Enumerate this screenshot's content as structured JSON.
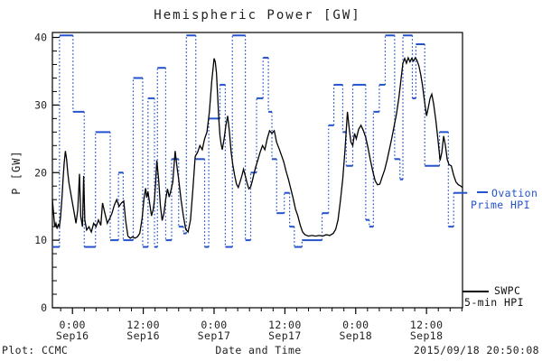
{
  "title": "Hemispheric Power [GW]",
  "y_axis": {
    "label": "P [GW]"
  },
  "x_axis": {
    "label": "Date and Time"
  },
  "footer": {
    "left": "Plot: CCMC",
    "right": "2015/09/18 20:50:08"
  },
  "legend": {
    "ovation": {
      "line1": "Ovation",
      "line2": "Prime HPI"
    },
    "swpc": {
      "line1": "SWPC",
      "line2": "5-min HPI"
    }
  },
  "colors": {
    "ovation": "#2453cc",
    "swpc": "#000000",
    "frame": "#000000",
    "background": "#ffffff"
  },
  "chart_data": {
    "type": "line",
    "title": "Hemispheric Power [GW]",
    "xlabel": "Date and Time",
    "ylabel": "P [GW]",
    "x_unit": "hours since 2015-09-16 00:00",
    "xlim": [
      -3.4,
      66.1
    ],
    "ylim": [
      0,
      40
    ],
    "grid": false,
    "x_major_ticks": [
      {
        "t": 0,
        "time": "0:00",
        "date": "Sep16"
      },
      {
        "t": 12,
        "time": "12:00",
        "date": "Sep16"
      },
      {
        "t": 24,
        "time": "0:00",
        "date": "Sep17"
      },
      {
        "t": 36,
        "time": "12:00",
        "date": "Sep17"
      },
      {
        "t": 48,
        "time": "0:00",
        "date": "Sep18"
      },
      {
        "t": 60,
        "time": "12:00",
        "date": "Sep18"
      }
    ],
    "x_minor_step": 2,
    "y_major_ticks": [
      0,
      10,
      20,
      30,
      40
    ],
    "y_minor_step": 2,
    "series": [
      {
        "name": "Ovation Prime HPI",
        "color": "#2453cc",
        "render": "level steps: solid horizontal segments joined by dotted vertical connectors",
        "steps": [
          [
            -3.4,
            -2.2,
            9
          ],
          [
            -2.2,
            0.1,
            40.3
          ],
          [
            0.1,
            2.0,
            29
          ],
          [
            2.0,
            3.9,
            9
          ],
          [
            3.9,
            6.4,
            26
          ],
          [
            6.4,
            7.8,
            10
          ],
          [
            7.8,
            8.6,
            20
          ],
          [
            8.6,
            10.3,
            10
          ],
          [
            10.3,
            11.9,
            34
          ],
          [
            11.9,
            12.8,
            9
          ],
          [
            12.8,
            13.9,
            31
          ],
          [
            13.9,
            14.4,
            9
          ],
          [
            14.4,
            15.8,
            35.5
          ],
          [
            15.8,
            16.8,
            10
          ],
          [
            16.8,
            18.0,
            22
          ],
          [
            18.0,
            18.8,
            12
          ],
          [
            18.8,
            19.3,
            11
          ],
          [
            19.3,
            20.9,
            40.3
          ],
          [
            20.9,
            22.4,
            22
          ],
          [
            22.4,
            23.1,
            9
          ],
          [
            23.1,
            25.0,
            28
          ],
          [
            25.0,
            25.9,
            33
          ],
          [
            25.9,
            27.1,
            9
          ],
          [
            27.1,
            29.3,
            40.3
          ],
          [
            29.3,
            30.2,
            10
          ],
          [
            30.2,
            31.2,
            20
          ],
          [
            31.2,
            32.3,
            31
          ],
          [
            32.3,
            33.2,
            37
          ],
          [
            33.2,
            33.8,
            29
          ],
          [
            33.8,
            34.6,
            22
          ],
          [
            34.6,
            35.9,
            14
          ],
          [
            35.9,
            36.8,
            17
          ],
          [
            36.8,
            37.6,
            12
          ],
          [
            37.6,
            38.9,
            9
          ],
          [
            38.9,
            42.3,
            10
          ],
          [
            42.3,
            43.4,
            14
          ],
          [
            43.4,
            44.3,
            27
          ],
          [
            44.3,
            45.8,
            33
          ],
          [
            45.8,
            46.4,
            26
          ],
          [
            46.4,
            47.5,
            21
          ],
          [
            47.5,
            49.7,
            33
          ],
          [
            49.7,
            50.3,
            13
          ],
          [
            50.3,
            51.0,
            12
          ],
          [
            51.0,
            52.0,
            29
          ],
          [
            52.0,
            53.0,
            33
          ],
          [
            53.0,
            54.6,
            40.3
          ],
          [
            54.6,
            55.5,
            22
          ],
          [
            55.5,
            56.0,
            19
          ],
          [
            56.0,
            57.6,
            40.3
          ],
          [
            57.6,
            58.2,
            31
          ],
          [
            58.2,
            59.7,
            39
          ],
          [
            59.7,
            62.2,
            21
          ],
          [
            62.2,
            63.7,
            26
          ],
          [
            63.7,
            64.6,
            12
          ],
          [
            64.6,
            66.9,
            17
          ]
        ]
      },
      {
        "name": "SWPC 5-min HPI",
        "color": "#000000",
        "render": "solid jagged line",
        "points": [
          [
            -3.4,
            16
          ],
          [
            -3.2,
            14
          ],
          [
            -3.0,
            12
          ],
          [
            -2.8,
            12.5
          ],
          [
            -2.6,
            11.7
          ],
          [
            -2.4,
            12.3
          ],
          [
            -2.2,
            12
          ],
          [
            -2.0,
            13.5
          ],
          [
            -1.8,
            16
          ],
          [
            -1.6,
            19
          ],
          [
            -1.4,
            21.5
          ],
          [
            -1.2,
            23.2
          ],
          [
            -1.0,
            22
          ],
          [
            -0.8,
            20
          ],
          [
            -0.6,
            18.5
          ],
          [
            -0.4,
            17.5
          ],
          [
            -0.2,
            16.5
          ],
          [
            0,
            15.5
          ],
          [
            0.3,
            14
          ],
          [
            0.6,
            12.5
          ],
          [
            0.9,
            14.5
          ],
          [
            1.2,
            19.8
          ],
          [
            1.4,
            13.5
          ],
          [
            1.7,
            12
          ],
          [
            1.9,
            19.5
          ],
          [
            2.1,
            13
          ],
          [
            2.4,
            11.5
          ],
          [
            2.8,
            12
          ],
          [
            3.2,
            11.2
          ],
          [
            3.6,
            12.5
          ],
          [
            4.0,
            12
          ],
          [
            4.4,
            13
          ],
          [
            4.8,
            12.2
          ],
          [
            5.1,
            15.5
          ],
          [
            5.5,
            14
          ],
          [
            5.9,
            12.5
          ],
          [
            6.3,
            13.2
          ],
          [
            6.7,
            14
          ],
          [
            7.1,
            15.2
          ],
          [
            7.5,
            16
          ],
          [
            7.9,
            15
          ],
          [
            8.3,
            15.5
          ],
          [
            8.7,
            15.8
          ],
          [
            9.0,
            13
          ],
          [
            9.4,
            10.6
          ],
          [
            9.8,
            10.3
          ],
          [
            10.2,
            10.5
          ],
          [
            10.6,
            10.3
          ],
          [
            11.0,
            10.5
          ],
          [
            11.4,
            11
          ],
          [
            11.8,
            13.2
          ],
          [
            12.1,
            16
          ],
          [
            12.4,
            17.7
          ],
          [
            12.6,
            16.3
          ],
          [
            12.8,
            17.2
          ],
          [
            13.0,
            16
          ],
          [
            13.2,
            14.8
          ],
          [
            13.4,
            13.6
          ],
          [
            13.7,
            14.6
          ],
          [
            13.9,
            16
          ],
          [
            14.1,
            18.5
          ],
          [
            14.3,
            21.8
          ],
          [
            14.6,
            19
          ],
          [
            14.9,
            15.2
          ],
          [
            15.2,
            12.9
          ],
          [
            15.5,
            14
          ],
          [
            15.8,
            16
          ],
          [
            16.1,
            17.6
          ],
          [
            16.4,
            16.4
          ],
          [
            16.7,
            17.4
          ],
          [
            17.0,
            18.6
          ],
          [
            17.4,
            23.2
          ],
          [
            17.7,
            21
          ],
          [
            18.0,
            19
          ],
          [
            18.4,
            16
          ],
          [
            18.8,
            13.6
          ],
          [
            19.2,
            11.6
          ],
          [
            19.6,
            11.2
          ],
          [
            20.0,
            13
          ],
          [
            20.4,
            17.5
          ],
          [
            20.8,
            22.4
          ],
          [
            21.2,
            23
          ],
          [
            21.6,
            24
          ],
          [
            22.0,
            23.4
          ],
          [
            22.4,
            25
          ],
          [
            22.8,
            26
          ],
          [
            23.2,
            29
          ],
          [
            23.6,
            33.5
          ],
          [
            24.0,
            36.9
          ],
          [
            24.2,
            36.4
          ],
          [
            24.4,
            34.8
          ],
          [
            24.6,
            31.5
          ],
          [
            24.8,
            28
          ],
          [
            25.0,
            25.5
          ],
          [
            25.2,
            24.2
          ],
          [
            25.4,
            23.4
          ],
          [
            25.7,
            25
          ],
          [
            26.0,
            27
          ],
          [
            26.3,
            28.4
          ],
          [
            26.6,
            26
          ],
          [
            26.9,
            23
          ],
          [
            27.2,
            21
          ],
          [
            27.5,
            19.5
          ],
          [
            27.8,
            18.3
          ],
          [
            28.1,
            17.8
          ],
          [
            28.4,
            18.6
          ],
          [
            28.7,
            19.5
          ],
          [
            29.0,
            20.5
          ],
          [
            29.3,
            19.5
          ],
          [
            29.6,
            18.4
          ],
          [
            29.9,
            17.6
          ],
          [
            30.2,
            17.9
          ],
          [
            30.5,
            18.8
          ],
          [
            30.8,
            20
          ],
          [
            31.1,
            21
          ],
          [
            31.4,
            21.8
          ],
          [
            31.8,
            23
          ],
          [
            32.2,
            24
          ],
          [
            32.6,
            23.4
          ],
          [
            33.0,
            25
          ],
          [
            33.4,
            26.2
          ],
          [
            33.8,
            25.8
          ],
          [
            34.2,
            26.2
          ],
          [
            34.6,
            24.5
          ],
          [
            35.0,
            23.6
          ],
          [
            35.4,
            22.6
          ],
          [
            35.8,
            21.6
          ],
          [
            36.2,
            20.2
          ],
          [
            36.6,
            19
          ],
          [
            37.0,
            17.6
          ],
          [
            37.4,
            16.2
          ],
          [
            37.8,
            14.6
          ],
          [
            38.2,
            13.6
          ],
          [
            38.6,
            12.2
          ],
          [
            39.0,
            11.2
          ],
          [
            39.4,
            10.8
          ],
          [
            40.0,
            10.6
          ],
          [
            40.6,
            10.7
          ],
          [
            41.2,
            10.6
          ],
          [
            41.8,
            10.7
          ],
          [
            42.4,
            10.6
          ],
          [
            43.0,
            10.8
          ],
          [
            43.6,
            10.7
          ],
          [
            44.2,
            11
          ],
          [
            44.6,
            11.6
          ],
          [
            45.0,
            13
          ],
          [
            45.4,
            15.8
          ],
          [
            45.8,
            19
          ],
          [
            46.2,
            23.5
          ],
          [
            46.6,
            29
          ],
          [
            46.9,
            26.5
          ],
          [
            47.2,
            24.5
          ],
          [
            47.5,
            24
          ],
          [
            47.8,
            25.8
          ],
          [
            48.1,
            25
          ],
          [
            48.5,
            26.4
          ],
          [
            48.9,
            27
          ],
          [
            49.3,
            26.2
          ],
          [
            49.7,
            25.2
          ],
          [
            50.1,
            23.6
          ],
          [
            50.5,
            21.8
          ],
          [
            50.9,
            20.2
          ],
          [
            51.3,
            18.8
          ],
          [
            51.7,
            18.2
          ],
          [
            52.1,
            18.3
          ],
          [
            52.5,
            19.4
          ],
          [
            52.9,
            20.4
          ],
          [
            53.3,
            21.8
          ],
          [
            53.7,
            23.4
          ],
          [
            54.1,
            25
          ],
          [
            54.5,
            26.8
          ],
          [
            54.9,
            28.6
          ],
          [
            55.3,
            31
          ],
          [
            55.7,
            34
          ],
          [
            56.0,
            36.2
          ],
          [
            56.3,
            36.9
          ],
          [
            56.6,
            36.2
          ],
          [
            56.9,
            37
          ],
          [
            57.2,
            36.4
          ],
          [
            57.5,
            36.9
          ],
          [
            57.8,
            36.5
          ],
          [
            58.1,
            37
          ],
          [
            58.4,
            36.6
          ],
          [
            58.7,
            35.8
          ],
          [
            59.0,
            34.6
          ],
          [
            59.3,
            33
          ],
          [
            59.6,
            31
          ],
          [
            60.0,
            28.4
          ],
          [
            60.3,
            29.6
          ],
          [
            60.6,
            31
          ],
          [
            60.9,
            31.6
          ],
          [
            61.2,
            30.2
          ],
          [
            61.6,
            27.6
          ],
          [
            62.0,
            24.4
          ],
          [
            62.3,
            21.8
          ],
          [
            62.6,
            23
          ],
          [
            62.9,
            25.4
          ],
          [
            63.2,
            24
          ],
          [
            63.5,
            22
          ],
          [
            63.8,
            21.2
          ],
          [
            64.2,
            21
          ],
          [
            64.6,
            19.6
          ],
          [
            65.0,
            18.6
          ],
          [
            65.4,
            18.2
          ],
          [
            65.8,
            18
          ],
          [
            66.05,
            17.8
          ]
        ]
      }
    ]
  }
}
